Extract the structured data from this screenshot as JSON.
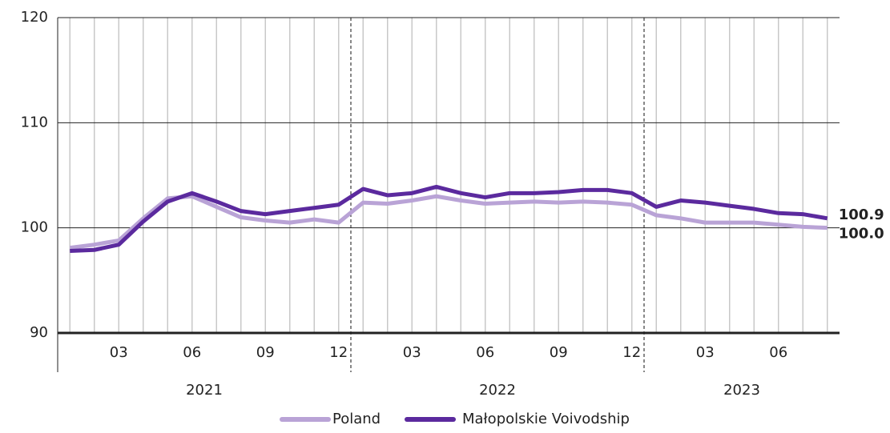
{
  "chart_data": {
    "type": "line",
    "categories": [
      null,
      null,
      "03",
      null,
      null,
      "06",
      null,
      null,
      "09",
      null,
      null,
      "12",
      null,
      null,
      "03",
      null,
      null,
      "06",
      null,
      null,
      "09",
      null,
      null,
      "12",
      null,
      null,
      "03",
      null,
      null,
      "06",
      null,
      null
    ],
    "year_labels": [
      "2021",
      "2022",
      "2023"
    ],
    "series": [
      {
        "name": "Poland",
        "color": "#b9a3d6",
        "values": [
          98.1,
          98.4,
          98.8,
          100.9,
          102.8,
          103.0,
          102.0,
          101.0,
          100.7,
          100.5,
          100.8,
          100.5,
          102.4,
          102.3,
          102.6,
          103.0,
          102.6,
          102.3,
          102.4,
          102.5,
          102.4,
          102.5,
          102.4,
          102.2,
          101.2,
          100.9,
          100.5,
          100.5,
          100.5,
          100.3,
          100.1,
          100.0
        ],
        "value_labels": {
          "31": "100.0"
        }
      },
      {
        "name": "Małopolskie Voivodship",
        "color": "#5b2a9e",
        "values": [
          97.8,
          97.9,
          98.4,
          100.6,
          102.5,
          103.3,
          102.5,
          101.6,
          101.3,
          101.6,
          101.9,
          102.2,
          103.7,
          103.1,
          103.3,
          103.9,
          103.3,
          102.9,
          103.3,
          103.3,
          103.4,
          103.6,
          103.6,
          103.3,
          102.0,
          102.6,
          102.4,
          102.1,
          101.8,
          101.4,
          101.3,
          100.9
        ],
        "value_labels": {
          "31": "100.9"
        }
      }
    ],
    "ylim": [
      90,
      120
    ],
    "yticks": [
      90,
      100,
      110,
      120
    ],
    "grid": true,
    "legend": "bottom"
  }
}
